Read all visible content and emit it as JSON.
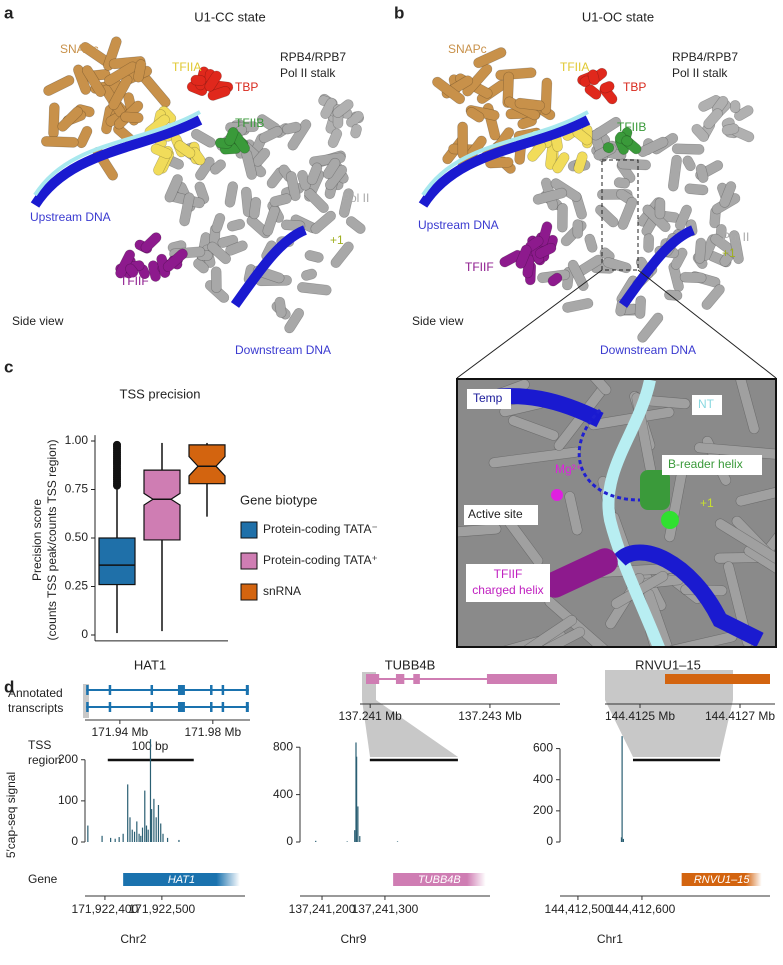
{
  "panel_a": {
    "label": "a",
    "title": "U1-CC state",
    "snapc": "SNAPc",
    "tfiia": "TFIIA",
    "tbp": "TBP",
    "stalk": [
      "RPB4/RPB7",
      "Pol II stalk"
    ],
    "tfiib": "TFIIB",
    "upstream": "Upstream DNA",
    "pol2": "Pol II",
    "plus1": "+1",
    "tfiif": "TFIIF",
    "view": "Side view",
    "downstream": "Downstream DNA"
  },
  "panel_b": {
    "label": "b",
    "title": "U1-OC state",
    "snapc": "SNAPc",
    "tfiia": "TFIIA",
    "tbp": "TBP",
    "stalk": [
      "RPB4/RPB7",
      "Pol II stalk"
    ],
    "tfiib": "TFIIB",
    "upstream": "Upstream DNA",
    "pol2": "Pol II",
    "plus1": "+1",
    "tfiif": "TFIIF",
    "view": "Side view",
    "downstream": "Downstream DNA"
  },
  "inset": {
    "temp": "Temp",
    "nt": "NT",
    "breader": "B-reader helix",
    "mg": "Mg²⁺",
    "plus1": "+1",
    "active_site": "Active site",
    "tfiif": [
      "TFIIF",
      "charged helix"
    ]
  },
  "panel_c": {
    "label": "c"
  },
  "panel_d": {
    "label": "d",
    "transcripts_label": [
      "Annotated",
      "transcripts"
    ],
    "tss_label": [
      "TSS",
      "region"
    ],
    "signal_label": "5′cap-seq signal",
    "gene_label": "Gene",
    "scale_label": "100 bp"
  },
  "chart_data": [
    {
      "type": "box",
      "title": "TSS precision",
      "ylabel": [
        "Precision score",
        "(counts TSS peak/counts TSS region)"
      ],
      "ylim": [
        -0.03,
        1.03
      ],
      "yticks": [
        0,
        0.25,
        {
          "value": 0.5,
          "label": "0.50"
        },
        0.75,
        {
          "value": 1,
          "label": "1.00"
        }
      ],
      "legend_title": "Gene biotype",
      "series": [
        {
          "name": "Protein-coding TATA⁻",
          "color": "#1f70a9",
          "whisker_low": 0.01,
          "q1": 0.26,
          "median": 0.36,
          "q3": 0.5,
          "whisker_high": 0.76,
          "outliers": [
            0.77,
            0.78,
            0.79,
            0.8,
            0.81,
            0.82,
            0.83,
            0.84,
            0.85,
            0.86,
            0.87,
            0.88,
            0.89,
            0.9,
            0.91,
            0.92,
            0.93,
            0.94,
            0.95,
            0.96,
            0.97,
            0.98
          ]
        },
        {
          "name": "Protein-coding TATA⁺",
          "color": "#cf7db3",
          "whisker_low": 0.02,
          "q1": 0.49,
          "median": 0.7,
          "q3": 0.85,
          "whisker_high": 0.99,
          "notch": [
            0.67,
            0.73
          ]
        },
        {
          "name": "snRNA",
          "color": "#d3640f",
          "whisker_low": 0.61,
          "q1": 0.78,
          "median": 0.87,
          "q3": 0.98,
          "whisker_high": 0.99,
          "notch": [
            0.82,
            0.92
          ]
        }
      ]
    },
    {
      "type": "bar",
      "title": "HAT1",
      "color": "#1a72ae",
      "bar_color": "#2a5f73",
      "transcript_xlim": [
        171.925,
        171.996
      ],
      "transcript_xticks": [
        {
          "value": 171.94,
          "label": "171.94 Mb"
        },
        {
          "value": 171.98,
          "label": "171.98 Mb"
        }
      ],
      "transcripts": [
        {
          "start": 171.9255,
          "end": 171.9955,
          "exons": [
            [
              171.9255,
              171.9262
            ],
            [
              171.9352,
              171.9358
            ],
            [
              171.9532,
              171.9538
            ],
            [
              171.965,
              171.968
            ],
            [
              171.9788,
              171.9794
            ],
            [
              171.9838,
              171.9844
            ],
            [
              171.9942,
              171.9955
            ]
          ]
        },
        {
          "start": 171.9255,
          "end": 171.9955,
          "exons": [
            [
              171.9255,
              171.9262
            ],
            [
              171.9352,
              171.9358
            ],
            [
              171.9532,
              171.9538
            ],
            [
              171.965,
              171.968
            ],
            [
              171.9788,
              171.9794
            ],
            [
              171.9838,
              171.9844
            ],
            [
              171.9942,
              171.9955
            ]
          ]
        }
      ],
      "tss_region": [
        171922405,
        171922556
      ],
      "xlim": [
        171922365,
        171922646
      ],
      "xticks": [
        {
          "value": 171922400,
          "label": "171,922,400"
        },
        {
          "value": 171922500,
          "label": "171,922,500"
        }
      ],
      "ylim": [
        0,
        265
      ],
      "yticks": [
        0,
        100,
        200
      ],
      "x": [
        171922370,
        171922395,
        171922410,
        171922418,
        171922425,
        171922432,
        171922440,
        171922444,
        171922448,
        171922452,
        171922456,
        171922460,
        171922463,
        171922466,
        171922470,
        171922473,
        171922476,
        171922480,
        171922482,
        171922486,
        171922490,
        171922494,
        171922498,
        171922502,
        171922510,
        171922530
      ],
      "values": [
        40,
        15,
        10,
        8,
        12,
        20,
        140,
        60,
        30,
        25,
        50,
        20,
        15,
        35,
        125,
        40,
        30,
        250,
        80,
        105,
        60,
        90,
        45,
        20,
        10,
        5
      ],
      "gene": "HAT1",
      "gene_span": [
        171922432,
        171922637
      ],
      "chromosome": "Chr2"
    },
    {
      "type": "bar",
      "title": "TUBB4B",
      "color": "#cf7db3",
      "bar_color": "#2a5f73",
      "transcript_xlim": [
        137.24083,
        137.24417
      ],
      "transcript_xticks": [
        {
          "value": 137.241,
          "label": "137.241 Mb"
        },
        {
          "value": 137.243,
          "label": "137.243 Mb"
        }
      ],
      "transcripts": [
        {
          "start": 137.24093,
          "end": 137.24412,
          "exons": [
            [
              137.24093,
              137.24115
            ],
            [
              137.24143,
              137.24157
            ],
            [
              137.24172,
              137.24183
            ],
            [
              137.24295,
              137.24412
            ]
          ]
        }
      ],
      "tss_region": [
        137241276,
        137241416
      ],
      "xlim": [
        137241165,
        137241467
      ],
      "xticks": [
        {
          "value": 137241200,
          "label": "137,241,200"
        },
        {
          "value": 137241300,
          "label": "137,241,300"
        }
      ],
      "ylim": [
        0,
        920
      ],
      "yticks": [
        0,
        400,
        800
      ],
      "x": [
        137241190,
        137241240,
        137241252,
        137241254,
        137241255,
        137241257,
        137241260,
        137241320
      ],
      "values": [
        10,
        5,
        100,
        840,
        720,
        300,
        50,
        5
      ],
      "gene": "TUBB4B",
      "gene_span": [
        137241313,
        137241460
      ],
      "chromosome": "Chr9"
    },
    {
      "type": "bar",
      "title": "RNVU1–15",
      "color": "#d3640f",
      "bar_color": "#2a5f73",
      "transcript_xlim": [
        144.41243,
        144.41277
      ],
      "transcript_xticks": [
        {
          "value": 144.4125,
          "label": "144.4125 Mb"
        },
        {
          "value": 144.4127,
          "label": "144.4127 Mb"
        }
      ],
      "transcripts": [
        {
          "start": 144.41255,
          "end": 144.41276,
          "exons": [
            [
              144.41255,
              144.41276
            ]
          ]
        }
      ],
      "tss_region": [
        144412586,
        144412722
      ],
      "xlim": [
        144412472,
        144412800
      ],
      "xticks": [
        {
          "value": 144412500,
          "label": "144,412,500"
        },
        {
          "value": 144412600,
          "label": "144,412,600"
        }
      ],
      "ylim": [
        0,
        700
      ],
      "yticks": [
        0,
        200,
        400,
        600
      ],
      "x": [
        144412568,
        144412569,
        144412571
      ],
      "values": [
        30,
        680,
        20
      ],
      "gene": "RNVU1–15",
      "gene_span": [
        144412662,
        144412787
      ],
      "chromosome": "Chr1"
    }
  ]
}
